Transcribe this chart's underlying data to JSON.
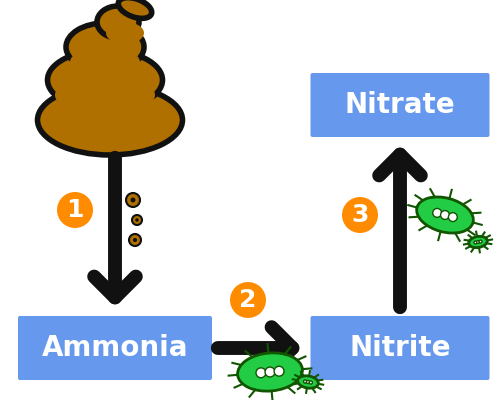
{
  "background_color": "#ffffff",
  "box_color": "#6699ee",
  "arrow_color": "#111111",
  "circle_color": "#ff8c00",
  "circle_text_color": "#ffffff",
  "poop_color": "#b07000",
  "poop_outline": "#111111",
  "bacteria_color": "#22cc44",
  "bacteria_outline": "#115500",
  "bacteria_white": "#ffffff",
  "ammonia_text": "Ammonia",
  "nitrite_text": "Nitrite",
  "nitrate_text": "Nitrate",
  "label_fontsize": 20,
  "number_fontsize": 18,
  "arrow_lw": 10,
  "figsize": [
    5.0,
    4.0
  ],
  "dpi": 100
}
